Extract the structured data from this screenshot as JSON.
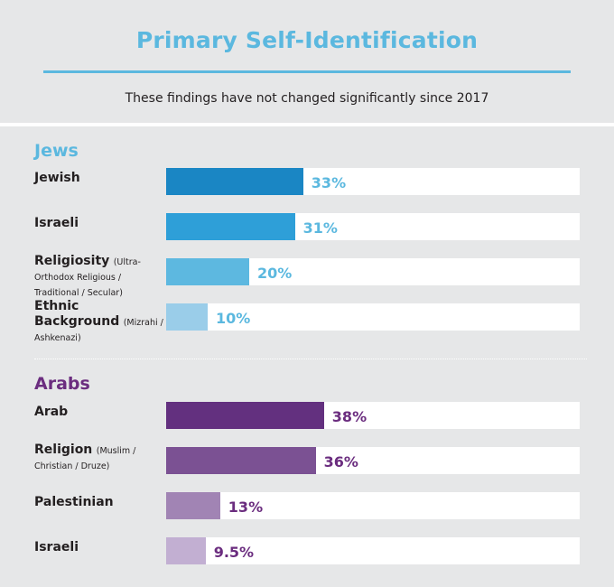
{
  "title": "Primary Self-Identification",
  "subtitle": "These findings have not changed significantly since 2017",
  "colors": {
    "title": "#5bb8df",
    "jews_title": "#5bb8df",
    "arabs_title": "#6b2d7f",
    "jews_value_text": "#5bb8df",
    "arabs_value_text": "#6b2d7f"
  },
  "chart_data": [
    {
      "type": "bar",
      "title": "Jews",
      "categories": [
        "Jewish",
        "Israeli",
        "Religiosity",
        "Ethnic Background"
      ],
      "subcategories": [
        "",
        "",
        "(Ultra-Orthodox Religious / Traditional / Secular)",
        "(Mizrahi / Ashkenazi)"
      ],
      "values": [
        33,
        31,
        20,
        10
      ],
      "value_labels": [
        "33%",
        "31%",
        "20%",
        "10%"
      ],
      "colors": [
        "#1a86c4",
        "#2e9fd8",
        "#5db8e0",
        "#9acde9"
      ],
      "xlim": [
        0,
        100
      ],
      "orientation": "horizontal"
    },
    {
      "type": "bar",
      "title": "Arabs",
      "categories": [
        "Arab",
        "Religion",
        "Palestinian",
        "Israeli"
      ],
      "subcategories": [
        "",
        "(Muslim / Christian / Druze)",
        "",
        ""
      ],
      "values": [
        38,
        36,
        13,
        9.5
      ],
      "value_labels": [
        "38%",
        "36%",
        "13%",
        "9.5%"
      ],
      "colors": [
        "#63307f",
        "#7b5193",
        "#a184b4",
        "#c2afd2"
      ],
      "xlim": [
        0,
        100
      ],
      "orientation": "horizontal"
    }
  ]
}
